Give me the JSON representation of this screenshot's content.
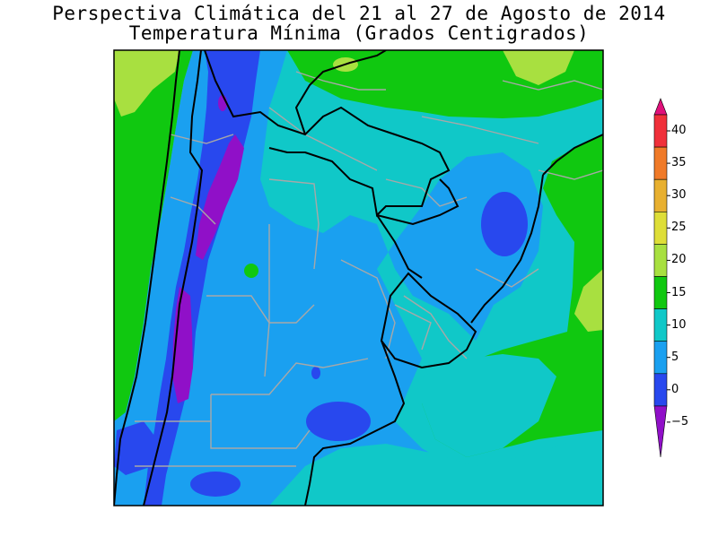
{
  "title": {
    "line1": "Perspectiva Climática del 21 al 27 de Agosto de 2014",
    "line2": "Temperatura Mínima (Grados Centigrados)"
  },
  "colorbar": {
    "ticks": [
      "40",
      "35",
      "30",
      "25",
      "20",
      "15",
      "10",
      "5",
      "0",
      "−5"
    ],
    "colors": [
      "#e0107a",
      "#f0303a",
      "#f07a28",
      "#e8b030",
      "#dede38",
      "#a8e040",
      "#10c810",
      "#10c8c8",
      "#1aa0f0",
      "#2848ee",
      "#9010c8"
    ]
  },
  "map_colors": {
    "below_minus5": "#9010c8",
    "minus5_to_0": "#2848ee",
    "0_to_5": "#1aa0f0",
    "5_to_10": "#10c8c8",
    "10_to_15": "#10c810",
    "15_to_20": "#a8e040"
  }
}
